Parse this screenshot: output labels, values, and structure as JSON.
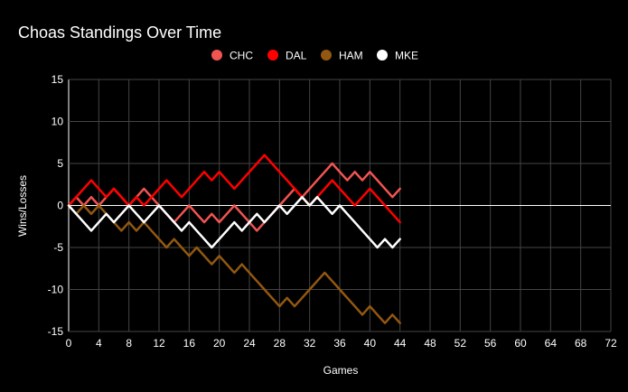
{
  "chart_data": {
    "type": "line",
    "title": "Choas Standings Over Time",
    "xlabel": "Games",
    "ylabel": "Wins/Losses",
    "xlim": [
      0,
      72
    ],
    "ylim": [
      -15,
      15
    ],
    "xticks": [
      0,
      4,
      8,
      12,
      16,
      20,
      24,
      28,
      32,
      36,
      40,
      44,
      48,
      52,
      56,
      60,
      64,
      68,
      72
    ],
    "yticks": [
      15,
      10,
      5,
      0,
      -5,
      -10,
      -15
    ],
    "grid": true,
    "legend_position": "top-center",
    "x": [
      0,
      1,
      2,
      3,
      4,
      5,
      6,
      7,
      8,
      9,
      10,
      11,
      12,
      13,
      14,
      15,
      16,
      17,
      18,
      19,
      20,
      21,
      22,
      23,
      24,
      25,
      26,
      27,
      28,
      29,
      30,
      31,
      32,
      33,
      34,
      35,
      36,
      37,
      38,
      39,
      40,
      41,
      42,
      43,
      44
    ],
    "series": [
      {
        "name": "CHC",
        "color": "#f25452",
        "values": [
          0,
          1,
          0,
          1,
          0,
          1,
          2,
          1,
          0,
          1,
          2,
          1,
          0,
          -1,
          -2,
          -1,
          0,
          -1,
          -2,
          -1,
          -2,
          -1,
          0,
          -1,
          -2,
          -3,
          -2,
          -1,
          0,
          1,
          2,
          1,
          2,
          3,
          4,
          5,
          4,
          3,
          4,
          3,
          4,
          3,
          2,
          1,
          2
        ]
      },
      {
        "name": "DAL",
        "color": "#ff0000",
        "values": [
          0,
          1,
          2,
          3,
          2,
          1,
          2,
          1,
          0,
          1,
          0,
          1,
          2,
          3,
          2,
          1,
          2,
          3,
          4,
          3,
          4,
          3,
          2,
          3,
          4,
          5,
          6,
          5,
          4,
          3,
          2,
          1,
          0,
          1,
          2,
          3,
          2,
          1,
          0,
          1,
          2,
          1,
          0,
          -1,
          -2
        ]
      },
      {
        "name": "HAM",
        "color": "#93580f",
        "values": [
          0,
          -1,
          0,
          -1,
          0,
          -1,
          -2,
          -3,
          -2,
          -3,
          -2,
          -3,
          -4,
          -5,
          -4,
          -5,
          -6,
          -5,
          -6,
          -7,
          -6,
          -7,
          -8,
          -7,
          -8,
          -9,
          -10,
          -11,
          -12,
          -11,
          -12,
          -11,
          -10,
          -9,
          -8,
          -9,
          -10,
          -11,
          -12,
          -13,
          -12,
          -13,
          -14,
          -13,
          -14
        ]
      },
      {
        "name": "MKE",
        "color": "#ffffff",
        "values": [
          0,
          -1,
          -2,
          -3,
          -2,
          -1,
          -2,
          -1,
          0,
          -1,
          -2,
          -1,
          0,
          -1,
          -2,
          -3,
          -2,
          -3,
          -4,
          -5,
          -4,
          -3,
          -2,
          -3,
          -2,
          -1,
          -2,
          -1,
          0,
          -1,
          0,
          1,
          0,
          1,
          0,
          -1,
          0,
          -1,
          -2,
          -3,
          -4,
          -5,
          -4,
          -5,
          -4
        ]
      }
    ]
  }
}
